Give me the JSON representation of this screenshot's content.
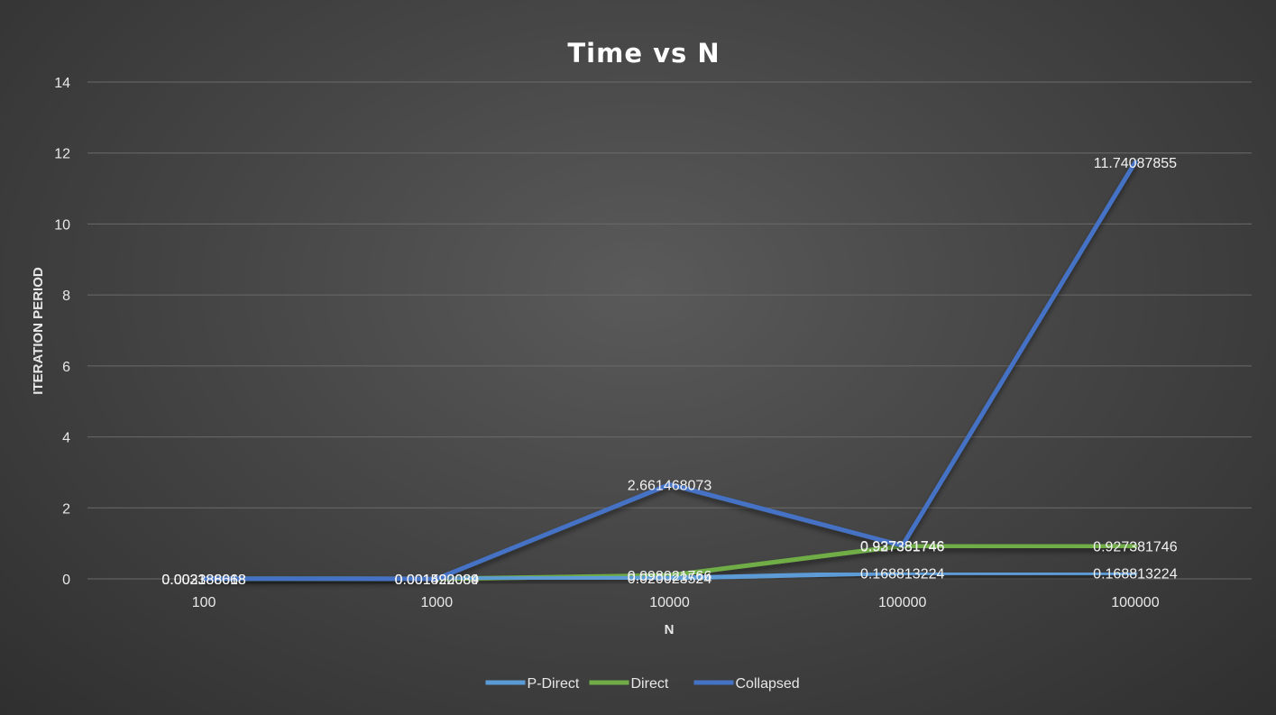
{
  "chart_data": {
    "type": "line",
    "title": "Time vs N",
    "xlabel": "N",
    "ylabel": "ITERATION PERIOD",
    "categories": [
      "100",
      "1000",
      "10000",
      "100000",
      "100000"
    ],
    "ylim": [
      0,
      14
    ],
    "yticks": [
      0,
      2,
      4,
      6,
      8,
      10,
      12,
      14
    ],
    "grid": true,
    "legend_position": "bottom",
    "series": [
      {
        "name": "P-Direct",
        "color": "#5b9bd5",
        "values": [
          0.002388068,
          0.001492089,
          0.020023524,
          0.168813224,
          0.168813224
        ],
        "labels": [
          "0.002388068",
          "0.001492089",
          "0.020023524",
          "0.168813224",
          "0.168813224"
        ]
      },
      {
        "name": "Direct",
        "color": "#70ad47",
        "values": [
          0.003186618,
          0.001520084,
          0.098021766,
          0.927381746,
          0.927381746
        ],
        "labels": [
          "0.003186618",
          "0.001520084",
          "0.098021766",
          "0.927381746",
          "0.927381746"
        ]
      },
      {
        "name": "Collapsed",
        "color": "#4472c4",
        "values": [
          0.002388068,
          0.001492089,
          2.661468073,
          0.937381746,
          11.74087855
        ],
        "labels": [
          "0.002388068",
          "0.001492089",
          "2.661468073",
          "0.937381746",
          "11.74087855"
        ]
      }
    ]
  }
}
